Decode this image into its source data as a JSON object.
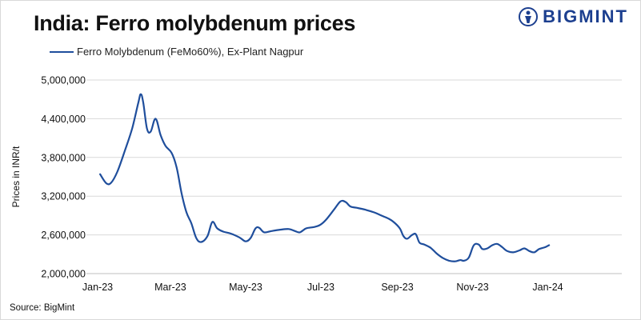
{
  "chart_data": {
    "type": "line",
    "title": "India: Ferro molybdenum prices",
    "ylabel": "Prices in INR/t",
    "xlabel": "",
    "ylim": [
      2000000,
      5000000
    ],
    "yticks": [
      {
        "value": 2000000,
        "label": "2,000,000"
      },
      {
        "value": 2600000,
        "label": "2,600,000"
      },
      {
        "value": 3200000,
        "label": "3,200,000"
      },
      {
        "value": 3800000,
        "label": "3,800,000"
      },
      {
        "value": 4400000,
        "label": "4,400,000"
      },
      {
        "value": 5000000,
        "label": "5,000,000"
      }
    ],
    "xticks": [
      {
        "day": 0,
        "label": "Jan-23"
      },
      {
        "day": 59,
        "label": "Mar-23"
      },
      {
        "day": 120,
        "label": "May-23"
      },
      {
        "day": 181,
        "label": "Jul-23"
      },
      {
        "day": 243,
        "label": "Sep-23"
      },
      {
        "day": 304,
        "label": "Nov-23"
      },
      {
        "day": 365,
        "label": "Jan-24"
      }
    ],
    "xlim": [
      0,
      425
    ],
    "grid": true,
    "legend_position": "top-left",
    "series": [
      {
        "name": "Ferro Molybdenum (FeMo60%), Ex-Plant Nagpur",
        "color": "#1f4e9c",
        "points": [
          [
            2,
            3540000
          ],
          [
            7,
            3400000
          ],
          [
            11,
            3410000
          ],
          [
            16,
            3580000
          ],
          [
            22,
            3900000
          ],
          [
            28,
            4250000
          ],
          [
            33,
            4650000
          ],
          [
            35,
            4780000
          ],
          [
            37,
            4650000
          ],
          [
            40,
            4250000
          ],
          [
            43,
            4200000
          ],
          [
            47,
            4400000
          ],
          [
            51,
            4150000
          ],
          [
            55,
            3980000
          ],
          [
            60,
            3870000
          ],
          [
            64,
            3650000
          ],
          [
            68,
            3250000
          ],
          [
            72,
            2950000
          ],
          [
            76,
            2780000
          ],
          [
            80,
            2550000
          ],
          [
            84,
            2490000
          ],
          [
            89,
            2580000
          ],
          [
            93,
            2800000
          ],
          [
            97,
            2700000
          ],
          [
            102,
            2650000
          ],
          [
            108,
            2620000
          ],
          [
            115,
            2560000
          ],
          [
            120,
            2500000
          ],
          [
            124,
            2550000
          ],
          [
            128,
            2700000
          ],
          [
            131,
            2710000
          ],
          [
            135,
            2640000
          ],
          [
            141,
            2660000
          ],
          [
            148,
            2680000
          ],
          [
            155,
            2690000
          ],
          [
            160,
            2660000
          ],
          [
            164,
            2640000
          ],
          [
            169,
            2700000
          ],
          [
            175,
            2720000
          ],
          [
            180,
            2750000
          ],
          [
            185,
            2830000
          ],
          [
            192,
            3000000
          ],
          [
            197,
            3120000
          ],
          [
            201,
            3110000
          ],
          [
            205,
            3040000
          ],
          [
            210,
            3020000
          ],
          [
            217,
            2990000
          ],
          [
            224,
            2950000
          ],
          [
            230,
            2900000
          ],
          [
            236,
            2850000
          ],
          [
            240,
            2800000
          ],
          [
            245,
            2700000
          ],
          [
            248,
            2580000
          ],
          [
            251,
            2540000
          ],
          [
            255,
            2600000
          ],
          [
            258,
            2610000
          ],
          [
            261,
            2480000
          ],
          [
            265,
            2450000
          ],
          [
            270,
            2400000
          ],
          [
            275,
            2310000
          ],
          [
            280,
            2240000
          ],
          [
            285,
            2200000
          ],
          [
            290,
            2190000
          ],
          [
            294,
            2210000
          ],
          [
            297,
            2200000
          ],
          [
            301,
            2250000
          ],
          [
            305,
            2440000
          ],
          [
            309,
            2450000
          ],
          [
            312,
            2380000
          ],
          [
            316,
            2390000
          ],
          [
            320,
            2440000
          ],
          [
            324,
            2460000
          ],
          [
            328,
            2410000
          ],
          [
            332,
            2350000
          ],
          [
            337,
            2330000
          ],
          [
            342,
            2360000
          ],
          [
            346,
            2390000
          ],
          [
            350,
            2350000
          ],
          [
            354,
            2330000
          ],
          [
            358,
            2380000
          ],
          [
            363,
            2410000
          ],
          [
            366,
            2440000
          ]
        ]
      }
    ]
  },
  "header": {
    "title": "India: Ferro molybdenum prices",
    "brand": "BIGMINT"
  },
  "legend": {
    "label": "Ferro Molybdenum (FeMo60%), Ex-Plant Nagpur"
  },
  "footer": {
    "source": "Source: BigMint"
  },
  "colors": {
    "line": "#1f4e9c",
    "grid": "#d9d9d9",
    "brand": "#1c3f8f"
  }
}
